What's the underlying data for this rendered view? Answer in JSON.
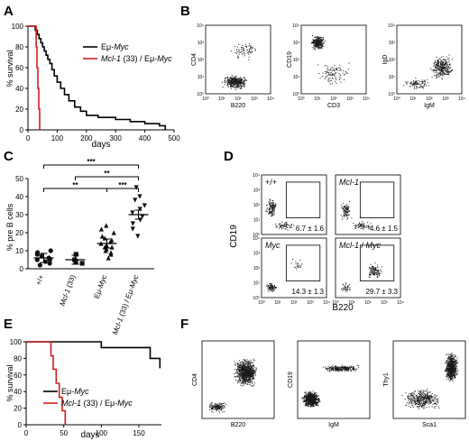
{
  "panels": {
    "A": "A",
    "B": "B",
    "C": "C",
    "D": "D",
    "E": "E",
    "F": "F"
  },
  "colors": {
    "black": "#000000",
    "red": "#d21f1f",
    "dots": "#1a1a1a"
  },
  "chart_data": [
    {
      "id": "A",
      "type": "line",
      "step": true,
      "xlabel": "days",
      "ylabel": "% survival",
      "xlim": [
        0,
        500
      ],
      "ylim": [
        0,
        100
      ],
      "xticks": [
        0,
        100,
        200,
        300,
        400,
        500
      ],
      "yticks": [
        0,
        20,
        40,
        60,
        80,
        100
      ],
      "legend_position": "top-right",
      "series": [
        {
          "name": "Eμ-Myc",
          "color": "#000000",
          "x": [
            0,
            25,
            32,
            38,
            44,
            50,
            56,
            62,
            68,
            75,
            82,
            90,
            100,
            112,
            125,
            140,
            160,
            180,
            200,
            240,
            300,
            350,
            400,
            450,
            470
          ],
          "y": [
            100,
            96,
            92,
            88,
            84,
            80,
            76,
            72,
            68,
            64,
            58,
            52,
            46,
            40,
            34,
            28,
            22,
            18,
            14,
            12,
            10,
            8,
            6,
            4,
            0
          ]
        },
        {
          "name": "Mcl-1 (33) / Eμ-Myc",
          "color": "#d21f1f",
          "x": [
            0,
            28,
            31,
            34,
            37,
            40
          ],
          "y": [
            100,
            80,
            60,
            40,
            20,
            0
          ]
        }
      ]
    },
    {
      "id": "C",
      "type": "scatter",
      "ylabel": "% pre B cells",
      "ylim": [
        0,
        50
      ],
      "yticks": [
        0,
        10,
        20,
        30,
        40,
        50
      ],
      "categories": [
        "+/+",
        "Mcl-1 (33)",
        "Eμ-Myc",
        "Mcl-1 (33) / Eμ-Myc"
      ],
      "groups": [
        {
          "marker": "circle",
          "values": [
            2,
            3,
            4,
            5,
            5,
            6,
            7,
            8,
            9,
            10
          ],
          "mean": 6
        },
        {
          "marker": "square",
          "values": [
            3,
            4,
            5,
            8
          ],
          "mean": 5
        },
        {
          "marker": "triangle",
          "values": [
            6,
            8,
            9,
            10,
            11,
            12,
            12,
            13,
            14,
            15,
            16,
            17,
            18,
            20,
            22,
            24
          ],
          "mean": 14
        },
        {
          "marker": "triangle-down",
          "values": [
            18,
            22,
            25,
            27,
            29,
            31,
            33,
            35,
            38,
            40,
            45
          ],
          "mean": 30
        }
      ],
      "significance": [
        {
          "from": 0,
          "to": 3,
          "label": "***"
        },
        {
          "from": 1,
          "to": 3,
          "label": "**"
        },
        {
          "from": 0,
          "to": 2,
          "label": "**"
        },
        {
          "from": 2,
          "to": 3,
          "label": "***"
        }
      ]
    },
    {
      "id": "E",
      "type": "line",
      "step": true,
      "xlabel": "days",
      "ylabel": "% survival",
      "xlim": [
        0,
        180
      ],
      "ylim": [
        0,
        100
      ],
      "xticks": [
        0,
        50,
        100,
        150
      ],
      "yticks": [
        0,
        20,
        40,
        60,
        80,
        100
      ],
      "legend_position": "bottom-right",
      "series": [
        {
          "name": "Eμ-Myc",
          "color": "#000000",
          "x": [
            0,
            100,
            165,
            178
          ],
          "y": [
            100,
            93,
            80,
            68
          ]
        },
        {
          "name": "Mcl-1 (33) / Eμ-Myc",
          "color": "#d21f1f",
          "x": [
            0,
            33,
            36,
            40,
            44,
            48,
            52
          ],
          "y": [
            100,
            83,
            67,
            50,
            33,
            17,
            0
          ]
        }
      ]
    }
  ],
  "flow": {
    "log_ticks": [
      "10⁰",
      "10¹",
      "10²",
      "10³",
      "10⁴"
    ],
    "B": [
      {
        "xlabel": "B220",
        "ylabel": "CD4"
      },
      {
        "xlabel": "CD3",
        "ylabel": "CD19"
      },
      {
        "xlabel": "IgM",
        "ylabel": "IgD"
      }
    ],
    "D": {
      "ylabel": "CD19",
      "xlabel": "B220",
      "plots": [
        {
          "label": "+/+",
          "value": "6.7 ± 1.6"
        },
        {
          "label": "Mcl-1",
          "value": "4.6 ± 1.5"
        },
        {
          "label": "Myc",
          "value": "14.3 ± 1.3"
        },
        {
          "label": "Mcl-1 / Myc",
          "value": "29.7 ± 3.3"
        }
      ]
    },
    "F": [
      {
        "xlabel": "B220",
        "ylabel": "CD4"
      },
      {
        "xlabel": "IgM",
        "ylabel": "CD19"
      },
      {
        "xlabel": "Sca1",
        "ylabel": "Thy1"
      }
    ]
  }
}
